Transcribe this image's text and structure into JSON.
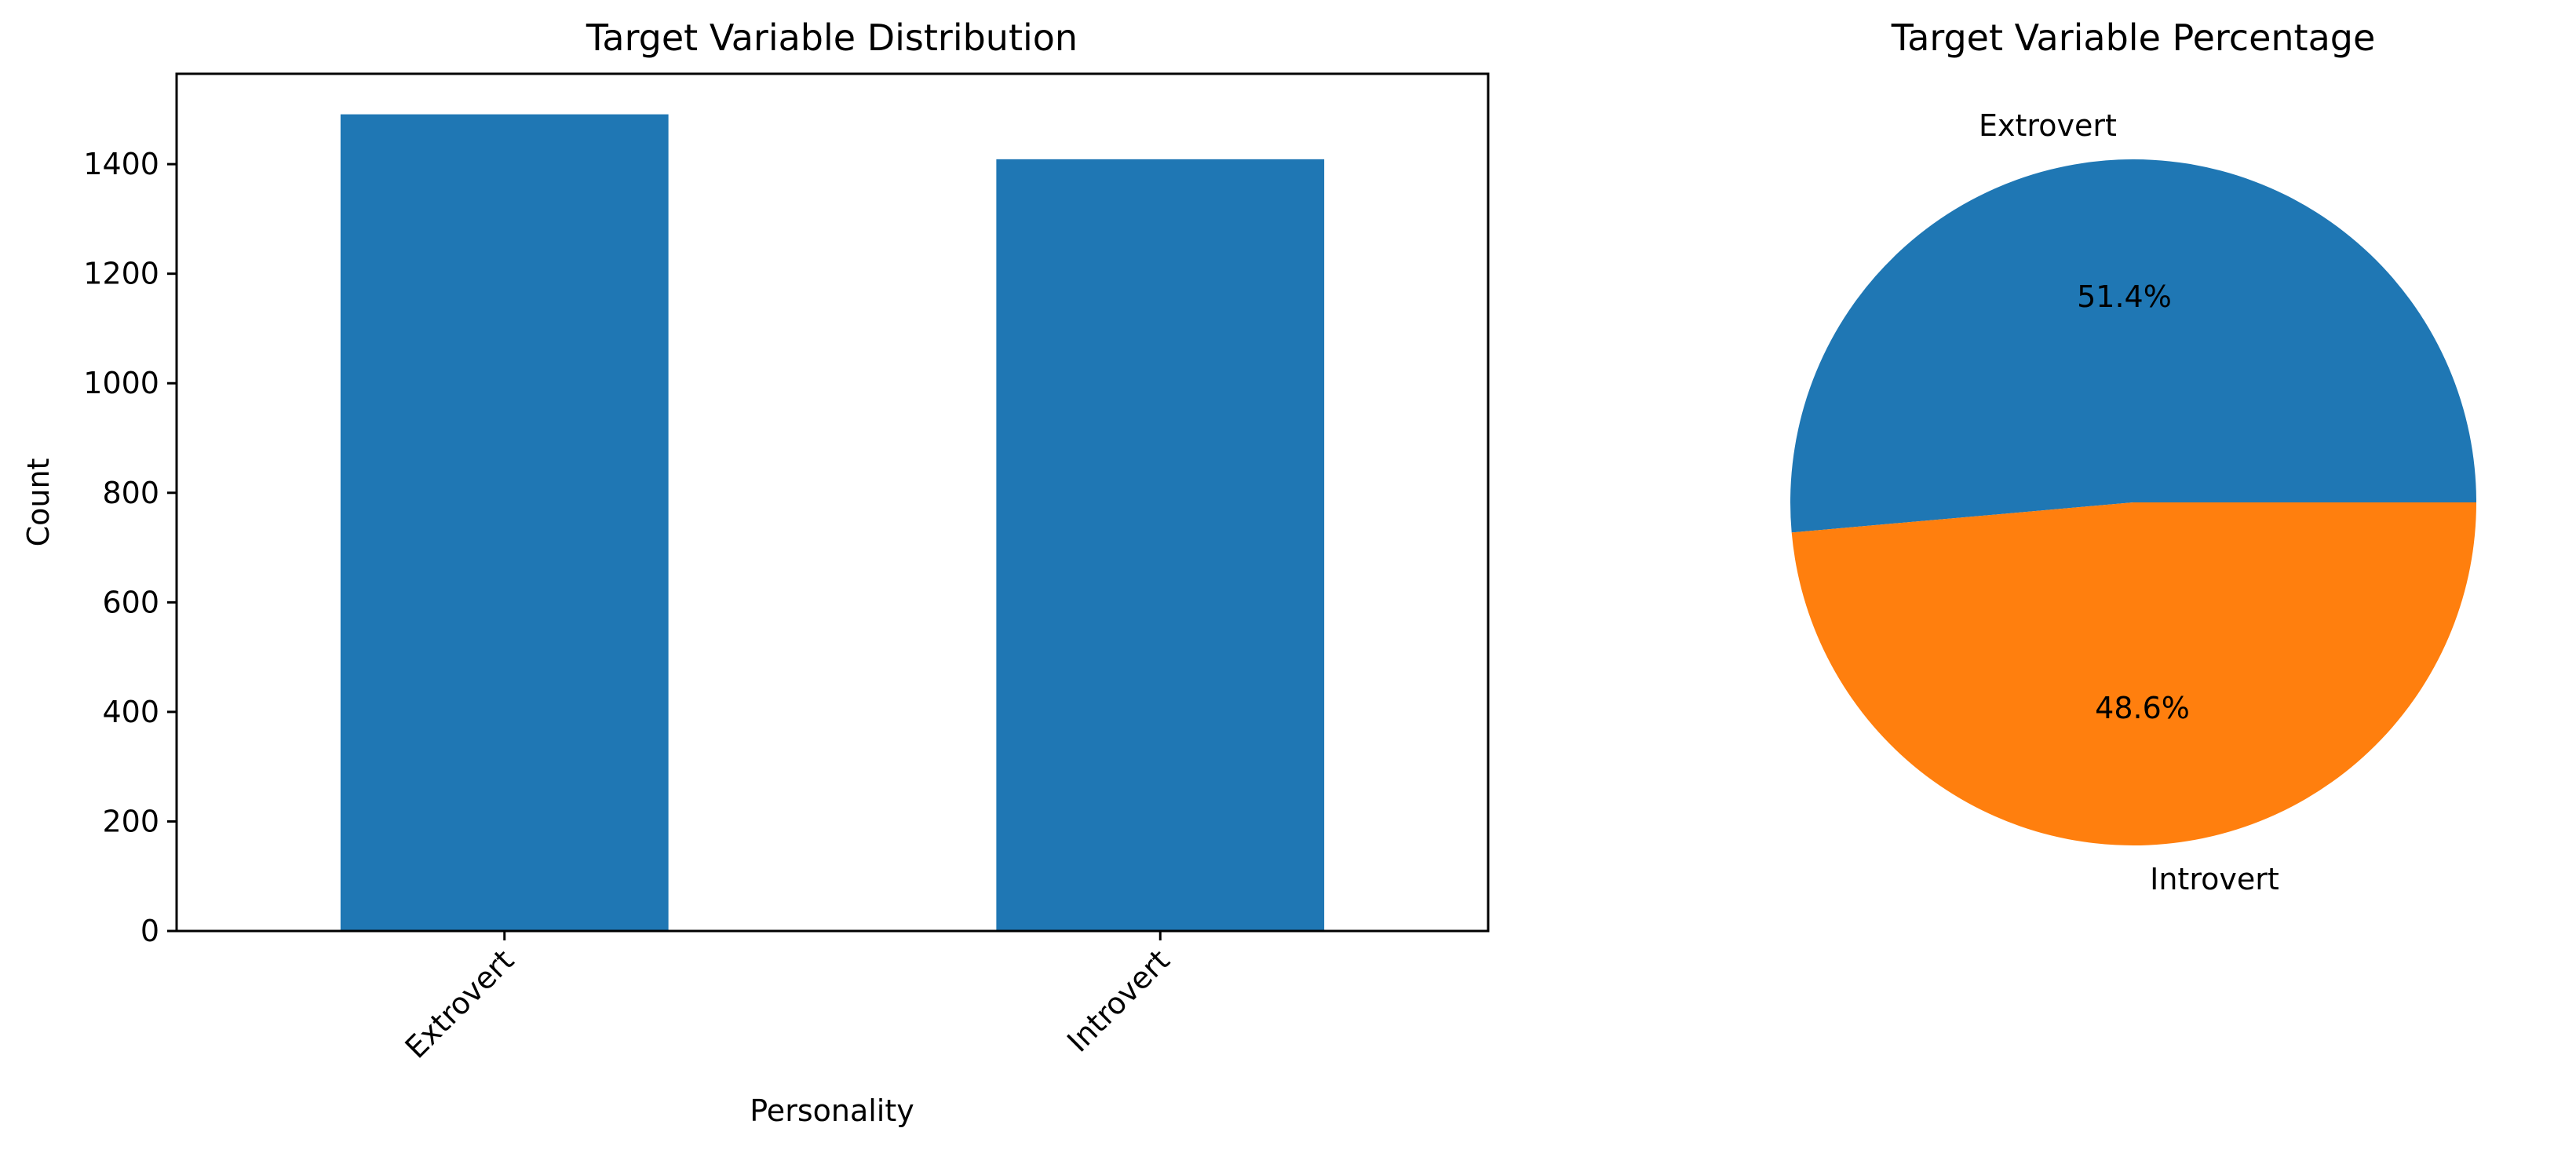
{
  "chart_data": [
    {
      "type": "bar",
      "title": "Target Variable Distribution",
      "xlabel": "Personality",
      "ylabel": "Count",
      "categories": [
        "Extrovert",
        "Introvert"
      ],
      "values": [
        1491,
        1409
      ],
      "ylim": [
        0,
        1565
      ],
      "yticks": [
        0,
        200,
        400,
        600,
        800,
        1000,
        1200,
        1400
      ],
      "xtick_rotation": 45,
      "grid": false,
      "color": "#1f77b4"
    },
    {
      "type": "pie",
      "title": "Target Variable Percentage",
      "labels": [
        "Extrovert",
        "Introvert"
      ],
      "values": [
        51.4,
        48.6
      ],
      "autopct": [
        "51.4%",
        "48.6%"
      ],
      "colors": [
        "#1f77b4",
        "#ff7f0e"
      ]
    }
  ]
}
